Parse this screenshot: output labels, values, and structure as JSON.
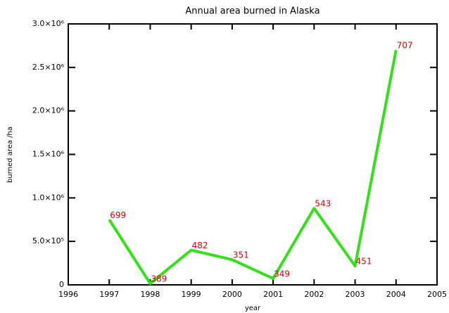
{
  "chart_data": {
    "type": "line",
    "title": "Annual area burned in Alaska",
    "x_label": "year",
    "y_label": "burned area /ha",
    "x": [
      1997,
      1998,
      1999,
      2000,
      2001,
      2002,
      2003,
      2004
    ],
    "series": [
      {
        "color": "#33e01a",
        "values": [
          750000,
          15000,
          400000,
          290000,
          73000,
          880000,
          218000,
          2700000
        ]
      }
    ],
    "point_labels": [
      699,
      389,
      482,
      351,
      349,
      543,
      451,
      707
    ],
    "point_label_color": "#e00000",
    "xlim": [
      1996,
      2005
    ],
    "xticks": [
      1996,
      1997,
      1998,
      1999,
      2000,
      2001,
      2002,
      2003,
      2004,
      2005
    ],
    "ylim": [
      0,
      3000000
    ],
    "yticks": [
      0,
      {
        "value": 500000,
        "label": "5.0×10⁵"
      },
      {
        "value": 1000000,
        "label": "1.0×10⁶"
      },
      {
        "value": 1500000,
        "label": "1.5×10⁶"
      },
      {
        "value": 2000000,
        "label": "2.0×10⁶"
      },
      {
        "value": 2500000,
        "label": "2.5×10⁶"
      },
      {
        "value": 3000000,
        "label": "3.0×10⁶"
      }
    ],
    "grid": false
  }
}
